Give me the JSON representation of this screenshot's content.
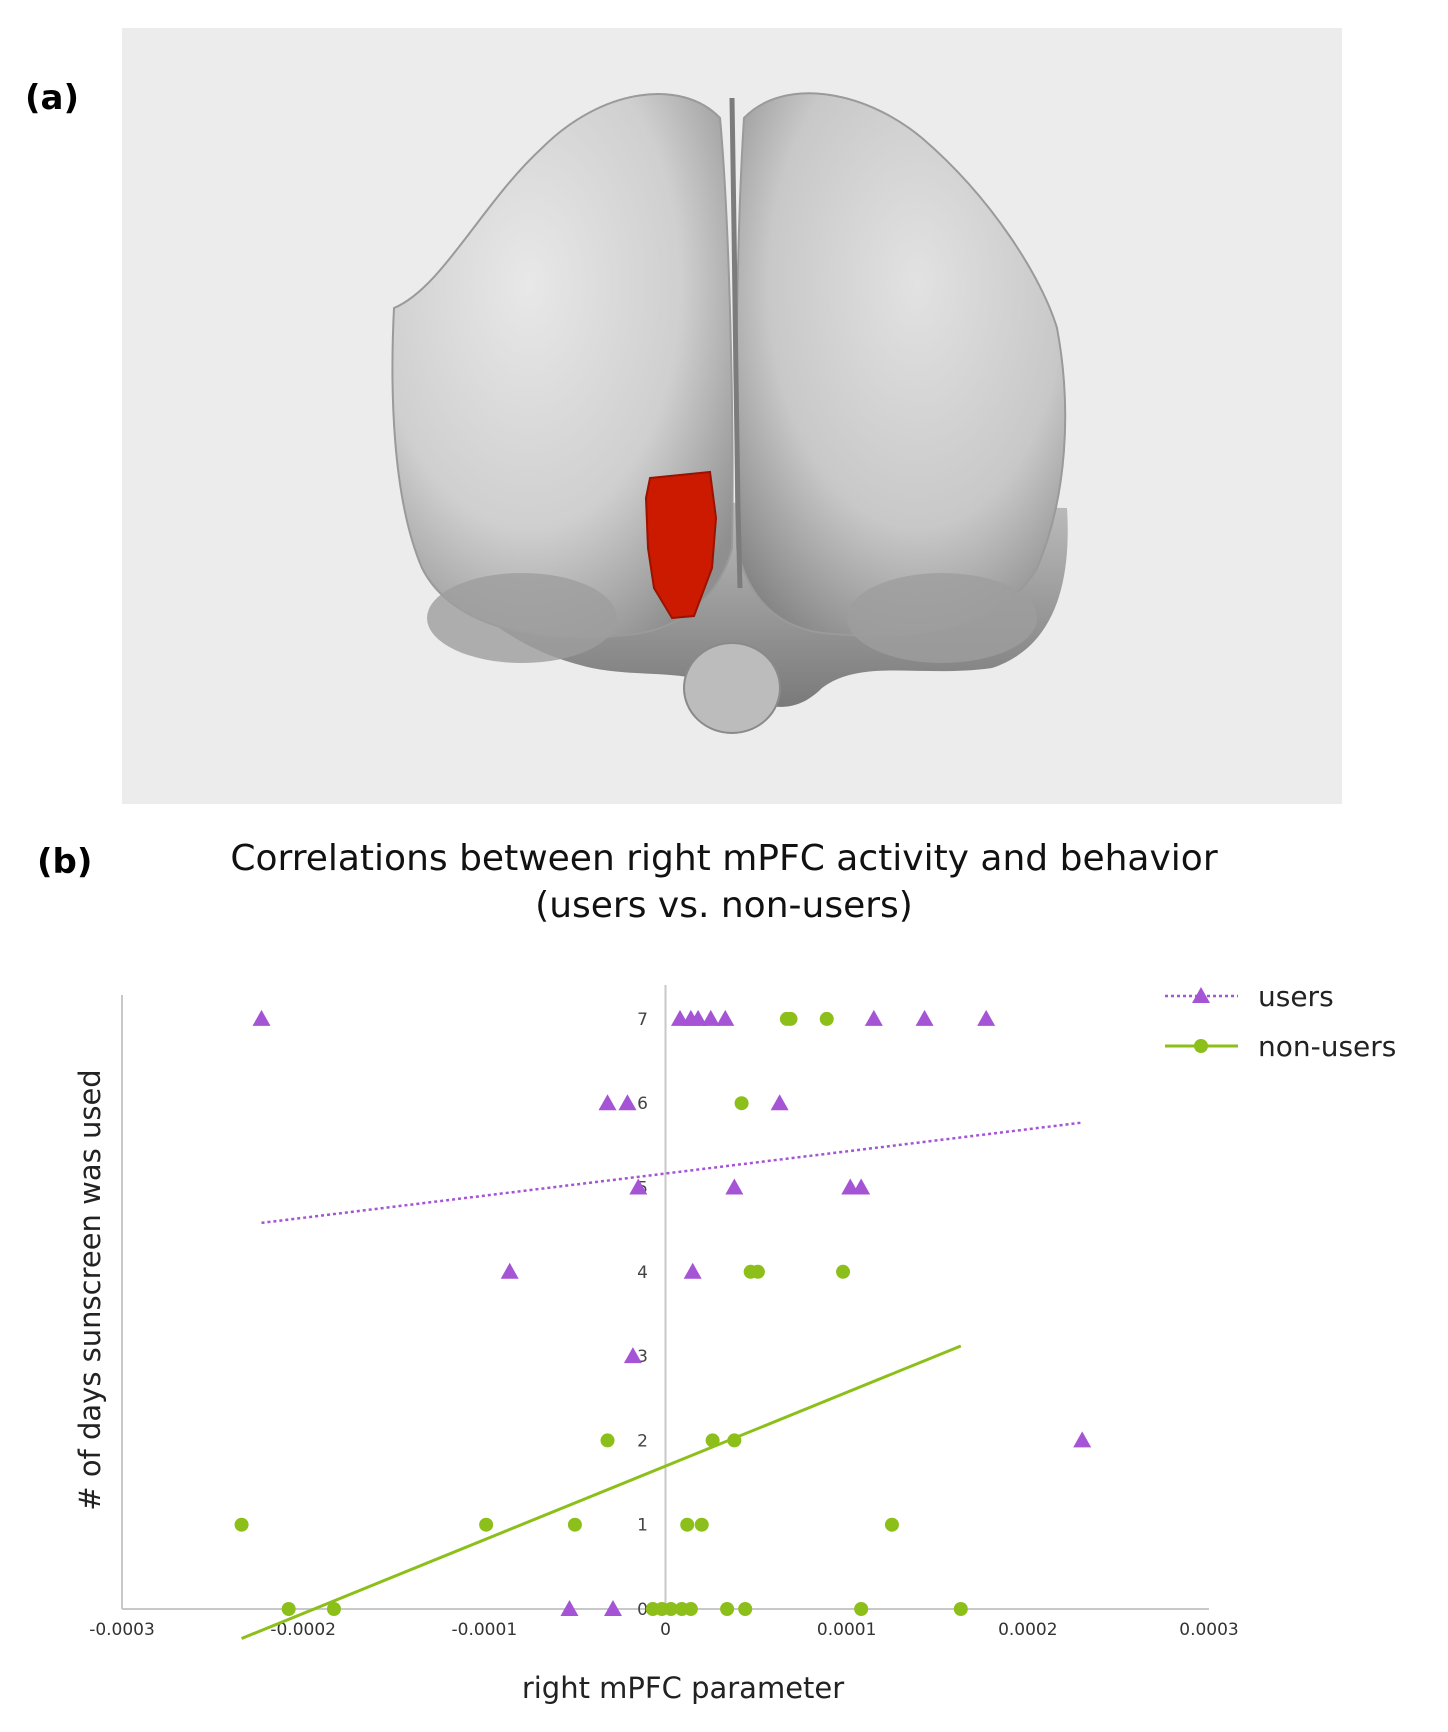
{
  "panels": {
    "a": "(a)",
    "b": "(b)"
  },
  "colors": {
    "users": "#a454d4",
    "non_users": "#8cbf1a",
    "region": "#cc1a00",
    "axis": "#c8c8c8"
  },
  "chart_data": {
    "type": "scatter",
    "title": "Correlations between right mPFC activity and behavior",
    "subtitle": "(users vs. non-users)",
    "xlabel": "right mPFC parameter",
    "ylabel": "# of days sunscreen was used",
    "xlim": [
      -0.0003,
      0.0003
    ],
    "ylim": [
      0,
      7.5
    ],
    "x_ticks": [
      "-0.0003",
      "-0.0002",
      "-0.0001",
      "0",
      "0.0001",
      "0.0002",
      "0.0003"
    ],
    "x_tick_values": [
      -0.0003,
      -0.0002,
      -0.0001,
      0,
      0.0001,
      0.0002,
      0.0003
    ],
    "y_ticks": [
      "0",
      "1",
      "2",
      "3",
      "4",
      "5",
      "6",
      "7"
    ],
    "y_tick_values": [
      0,
      1,
      2,
      3,
      4,
      5,
      6,
      7
    ],
    "legend": "top-right",
    "series": [
      {
        "name": "users",
        "marker": "triangle",
        "trendline": "dotted",
        "trend_start": [
          -0.000223,
          4.58
        ],
        "trend_end": [
          0.00023,
          5.77
        ],
        "points": [
          [
            -0.000223,
            7
          ],
          [
            8e-06,
            7
          ],
          [
            1.4e-05,
            7
          ],
          [
            1.8e-05,
            7
          ],
          [
            2.5e-05,
            7
          ],
          [
            3.3e-05,
            7
          ],
          [
            0.000115,
            7
          ],
          [
            0.000143,
            7
          ],
          [
            0.000177,
            7
          ],
          [
            -3.2e-05,
            6
          ],
          [
            -2.1e-05,
            6
          ],
          [
            6.3e-05,
            6
          ],
          [
            -1.5e-05,
            5
          ],
          [
            3.8e-05,
            5
          ],
          [
            0.000102,
            5
          ],
          [
            0.000108,
            5
          ],
          [
            -8.6e-05,
            4
          ],
          [
            1.5e-05,
            4
          ],
          [
            -1.8e-05,
            3
          ],
          [
            0.00023,
            2
          ],
          [
            -5.3e-05,
            0
          ],
          [
            -2.9e-05,
            0
          ]
        ]
      },
      {
        "name": "non-users",
        "marker": "circle",
        "trendline": "solid",
        "trend_start": [
          -0.000234,
          -0.35
        ],
        "trend_end": [
          0.000163,
          3.12
        ],
        "points": [
          [
            6.7e-05,
            7
          ],
          [
            6.9e-05,
            7
          ],
          [
            8.9e-05,
            7
          ],
          [
            4.2e-05,
            6
          ],
          [
            4.7e-05,
            4
          ],
          [
            5.1e-05,
            4
          ],
          [
            9.8e-05,
            4
          ],
          [
            -3.2e-05,
            2
          ],
          [
            2.6e-05,
            2
          ],
          [
            3.8e-05,
            2
          ],
          [
            -0.000234,
            1
          ],
          [
            -9.9e-05,
            1
          ],
          [
            -5e-05,
            1
          ],
          [
            1.2e-05,
            1
          ],
          [
            2e-05,
            1
          ],
          [
            0.000125,
            1
          ],
          [
            -0.000208,
            0
          ],
          [
            -0.000183,
            0
          ],
          [
            -7e-06,
            0
          ],
          [
            -2e-06,
            0
          ],
          [
            3e-06,
            0
          ],
          [
            9e-06,
            0
          ],
          [
            1.4e-05,
            0
          ],
          [
            3.4e-05,
            0
          ],
          [
            4.4e-05,
            0
          ],
          [
            0.000108,
            0
          ],
          [
            0.000163,
            0
          ]
        ]
      }
    ]
  }
}
